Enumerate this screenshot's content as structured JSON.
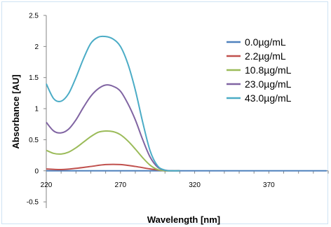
{
  "chart_data": {
    "type": "line",
    "title": "",
    "xlabel": "Wavelength [nm]",
    "ylabel": "Absorbance [AU]",
    "xlim": [
      220,
      410
    ],
    "ylim": [
      -0.6,
      2.5
    ],
    "x_ticks": [
      220,
      270,
      320,
      370
    ],
    "y_ticks": [
      -0.5,
      0,
      0.5,
      1,
      1.5,
      2,
      2.5
    ],
    "x_tick_labels": [
      "220",
      "270",
      "320",
      "370"
    ],
    "y_tick_labels": [
      "-0.5",
      "0",
      "0.5",
      "1",
      "1.5",
      "2",
      "2.5"
    ],
    "grid": false,
    "legend_position": "right",
    "series": [
      {
        "name": "0.0µg/mL",
        "color": "#4f81bd",
        "x": [
          220,
          300,
          409
        ],
        "y": [
          0.0,
          0.0,
          0.0
        ]
      },
      {
        "name": "2.2µg/mL",
        "color": "#c0504d",
        "x": [
          220,
          230,
          240,
          250,
          260,
          270,
          280,
          290,
          300,
          310
        ],
        "y": [
          0.03,
          0.02,
          0.04,
          0.07,
          0.1,
          0.1,
          0.07,
          0.03,
          0.0,
          0.0
        ]
      },
      {
        "name": "10.8µg/mL",
        "color": "#9bbb59",
        "x": [
          220,
          225,
          230,
          235,
          240,
          245,
          250,
          255,
          260,
          265,
          270,
          275,
          280,
          285,
          290,
          295,
          300,
          305,
          310
        ],
        "y": [
          0.33,
          0.28,
          0.27,
          0.3,
          0.37,
          0.46,
          0.55,
          0.62,
          0.64,
          0.63,
          0.58,
          0.48,
          0.35,
          0.21,
          0.09,
          0.02,
          0.0,
          0.0,
          0.0
        ]
      },
      {
        "name": "23.0µg/mL",
        "color": "#8064a2",
        "x": [
          220,
          225,
          230,
          235,
          240,
          245,
          250,
          255,
          260,
          265,
          270,
          275,
          280,
          285,
          290,
          295,
          300,
          305,
          310
        ],
        "y": [
          0.78,
          0.64,
          0.61,
          0.67,
          0.82,
          1.02,
          1.2,
          1.32,
          1.38,
          1.36,
          1.28,
          1.08,
          0.82,
          0.5,
          0.22,
          0.06,
          0.01,
          0.0,
          0.0
        ]
      },
      {
        "name": "43.0µg/mL",
        "color": "#4bacc6",
        "x": [
          220,
          225,
          230,
          235,
          240,
          245,
          250,
          255,
          260,
          265,
          270,
          275,
          280,
          285,
          290,
          295,
          300,
          305,
          310
        ],
        "y": [
          1.4,
          1.16,
          1.12,
          1.24,
          1.5,
          1.8,
          2.05,
          2.15,
          2.16,
          2.12,
          2.0,
          1.72,
          1.3,
          0.78,
          0.32,
          0.08,
          0.01,
          0.0,
          0.0
        ]
      }
    ]
  }
}
